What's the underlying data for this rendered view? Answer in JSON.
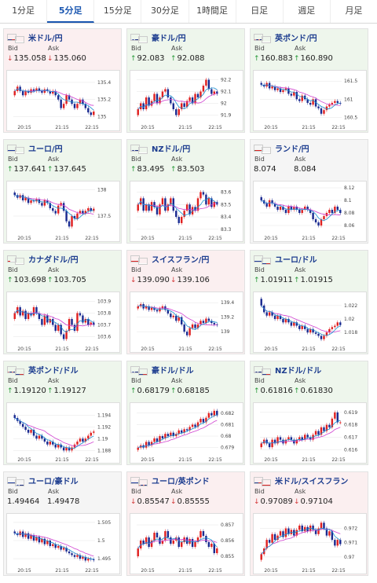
{
  "tabs": [
    {
      "label": "1分足",
      "active": false
    },
    {
      "label": "5分足",
      "active": true
    },
    {
      "label": "15分足",
      "active": false
    },
    {
      "label": "30分足",
      "active": false
    },
    {
      "label": "1時間足",
      "active": false
    },
    {
      "label": "日足",
      "active": false
    },
    {
      "label": "週足",
      "active": false
    },
    {
      "label": "月足",
      "active": false
    }
  ],
  "colors": {
    "accent": "#1a56b0",
    "up_card": "#eef6ec",
    "down_card": "#fbeff0",
    "up_arrow": "#2a9a3a",
    "down_arrow": "#d43a3a",
    "ma_line": "#d040d0",
    "candle_up": "#e02020",
    "candle_down": "#1a2a90"
  },
  "labels": {
    "bid": "Bid",
    "ask": "Ask"
  },
  "x_ticks": [
    "20:15",
    "21:15",
    "22:15"
  ],
  "pairs": [
    {
      "title": "米ドル/円",
      "flags": [
        "us-flag",
        "jp-flag"
      ],
      "trend": "down",
      "bid": "135.058",
      "ask": "135.060",
      "bid_dir": "down",
      "ask_dir": "down",
      "y_ticks": [
        "135.4",
        "135.2",
        "135"
      ],
      "ylim": [
        134.95,
        135.5
      ],
      "candles": [
        135.3,
        135.35,
        135.3,
        135.25,
        135.3,
        135.28,
        135.32,
        135.3,
        135.33,
        135.3,
        135.28,
        135.32,
        135.3,
        135.27,
        135.3,
        135.25,
        135.2,
        135.1,
        135.15,
        135.25,
        135.2,
        135.15,
        135.1,
        135.15,
        135.2,
        135.15,
        135.1,
        135.05,
        135.02,
        135.06
      ]
    },
    {
      "title": "豪ドル/円",
      "flags": [
        "au-flag",
        "jp-flag"
      ],
      "trend": "up",
      "bid": "92.083",
      "ask": "92.088",
      "bid_dir": "up",
      "ask_dir": "up",
      "y_ticks": [
        "92.2",
        "92.1",
        "92",
        "91.9"
      ],
      "ylim": [
        91.85,
        92.25
      ],
      "candles": [
        91.95,
        92.0,
        91.95,
        92.05,
        91.98,
        92.02,
        92.08,
        92.0,
        92.05,
        92.1,
        92.12,
        92.05,
        92.0,
        91.95,
        91.9,
        91.95,
        92.0,
        91.97,
        92.02,
        92.05,
        92.0,
        92.08,
        92.05,
        92.1,
        92.15,
        92.2,
        92.12,
        92.08,
        92.1,
        92.08
      ]
    },
    {
      "title": "英ポンド/円",
      "flags": [
        "gb-flag",
        "jp-flag"
      ],
      "trend": "up",
      "bid": "160.883",
      "ask": "160.890",
      "bid_dir": "up",
      "ask_dir": "up",
      "y_ticks": [
        "161.5",
        "161",
        "160.5"
      ],
      "ylim": [
        160.4,
        161.7
      ],
      "candles": [
        161.4,
        161.35,
        161.45,
        161.3,
        161.35,
        161.25,
        161.3,
        161.2,
        161.25,
        161.3,
        161.15,
        161.1,
        161.2,
        161.0,
        160.95,
        161.1,
        161.0,
        160.9,
        160.85,
        161.0,
        160.8,
        160.75,
        160.6,
        160.7,
        160.8,
        160.85,
        160.9,
        160.95,
        160.9,
        160.88
      ]
    },
    {
      "title": "ユーロ/円",
      "flags": [
        "eu-flag",
        "jp-flag"
      ],
      "trend": "up",
      "bid": "137.641",
      "ask": "137.645",
      "bid_dir": "up",
      "ask_dir": "up",
      "y_ticks": [
        "138",
        "137.5"
      ],
      "ylim": [
        137.2,
        138.1
      ],
      "candles": [
        137.9,
        137.85,
        137.9,
        137.8,
        137.85,
        137.75,
        137.8,
        137.78,
        137.82,
        137.75,
        137.7,
        137.8,
        137.75,
        137.65,
        137.6,
        137.55,
        137.7,
        137.75,
        137.6,
        137.4,
        137.3,
        137.5,
        137.45,
        137.55,
        137.6,
        137.55,
        137.6,
        137.65,
        137.6,
        137.64
      ]
    },
    {
      "title": "NZドル/円",
      "flags": [
        "nz-flag",
        "jp-flag"
      ],
      "trend": "up",
      "bid": "83.495",
      "ask": "83.503",
      "bid_dir": "up",
      "ask_dir": "up",
      "y_ticks": [
        "83.6",
        "83.5",
        "83.4",
        "83.3"
      ],
      "ylim": [
        83.28,
        83.66
      ],
      "candles": [
        83.5,
        83.55,
        83.45,
        83.5,
        83.45,
        83.52,
        83.48,
        83.42,
        83.5,
        83.55,
        83.45,
        83.5,
        83.55,
        83.45,
        83.4,
        83.35,
        83.4,
        83.45,
        83.5,
        83.42,
        83.48,
        83.45,
        83.55,
        83.6,
        83.58,
        83.5,
        83.55,
        83.48,
        83.52,
        83.5
      ]
    },
    {
      "title": "ランド/円",
      "flags": [
        "za-flag",
        "jp-flag"
      ],
      "trend": "neutral",
      "bid": "8.074",
      "ask": "8.084",
      "bid_dir": "",
      "ask_dir": "",
      "y_ticks": [
        "8.12",
        "8.1",
        "8.08",
        "8.06"
      ],
      "ylim": [
        8.05,
        8.125
      ],
      "candles": [
        8.1,
        8.095,
        8.09,
        8.1,
        8.095,
        8.09,
        8.085,
        8.09,
        8.085,
        8.08,
        8.09,
        8.085,
        8.09,
        8.085,
        8.08,
        8.085,
        8.09,
        8.085,
        8.08,
        8.07,
        8.065,
        8.06,
        8.07,
        8.075,
        8.08,
        8.085,
        8.08,
        8.09,
        8.085,
        8.08
      ]
    },
    {
      "title": "カナダドル/円",
      "flags": [
        "ca-flag",
        "jp-flag"
      ],
      "trend": "up",
      "bid": "103.698",
      "ask": "103.705",
      "bid_dir": "up",
      "ask_dir": "up",
      "y_ticks": [
        "103.9",
        "103.8",
        "103.7",
        "103.6"
      ],
      "ylim": [
        103.55,
        103.95
      ],
      "candles": [
        103.8,
        103.85,
        103.78,
        103.82,
        103.75,
        103.8,
        103.78,
        103.85,
        103.8,
        103.75,
        103.7,
        103.78,
        103.72,
        103.75,
        103.7,
        103.65,
        103.7,
        103.62,
        103.58,
        103.65,
        103.75,
        103.7,
        103.65,
        103.8,
        103.78,
        103.72,
        103.75,
        103.7,
        103.72,
        103.7
      ]
    },
    {
      "title": "スイスフラン/円",
      "flags": [
        "ch-flag",
        "jp-flag"
      ],
      "trend": "down",
      "bid": "139.090",
      "ask": "139.106",
      "bid_dir": "down",
      "ask_dir": "down",
      "y_ticks": [
        "139.4",
        "139.2",
        "139"
      ],
      "ylim": [
        138.85,
        139.5
      ],
      "candles": [
        139.35,
        139.38,
        139.32,
        139.35,
        139.3,
        139.33,
        139.3,
        139.28,
        139.32,
        139.35,
        139.3,
        139.25,
        139.2,
        139.22,
        139.15,
        139.2,
        139.1,
        139.0,
        138.95,
        139.05,
        139.1,
        139.05,
        139.1,
        139.15,
        139.12,
        139.18,
        139.15,
        139.12,
        139.1,
        139.09
      ]
    },
    {
      "title": "ユーロ/ドル",
      "flags": [
        "eu-flag",
        "us-flag"
      ],
      "trend": "up",
      "bid": "1.01911",
      "ask": "1.01915",
      "bid_dir": "up",
      "ask_dir": "up",
      "y_ticks": [
        "1.022",
        "1.02",
        "1.018"
      ],
      "ylim": [
        1.0165,
        1.0235
      ],
      "candles": [
        1.022,
        1.021,
        1.0205,
        1.021,
        1.0205,
        1.02,
        1.0205,
        1.02,
        1.0195,
        1.02,
        1.0195,
        1.019,
        1.0195,
        1.019,
        1.0185,
        1.019,
        1.0185,
        1.018,
        1.0185,
        1.018,
        1.0178,
        1.0175,
        1.017,
        1.0175,
        1.018,
        1.0185,
        1.0188,
        1.019,
        1.0195,
        1.0191
      ]
    },
    {
      "title": "英ポンド/ドル",
      "flags": [
        "gb-flag",
        "us-flag"
      ],
      "trend": "up",
      "bid": "1.19120",
      "ask": "1.19127",
      "bid_dir": "up",
      "ask_dir": "up",
      "y_ticks": [
        "1.194",
        "1.192",
        "1.19",
        "1.188"
      ],
      "ylim": [
        1.1875,
        1.1955
      ],
      "candles": [
        1.1935,
        1.193,
        1.1925,
        1.192,
        1.1915,
        1.191,
        1.1915,
        1.1905,
        1.19,
        1.1905,
        1.19,
        1.1895,
        1.189,
        1.1895,
        1.189,
        1.1885,
        1.189,
        1.1885,
        1.188,
        1.1885,
        1.188,
        1.1885,
        1.189,
        1.1895,
        1.19,
        1.1895,
        1.19,
        1.1905,
        1.191,
        1.1912
      ]
    },
    {
      "title": "豪ドル/ドル",
      "flags": [
        "au-flag",
        "us-flag"
      ],
      "trend": "up",
      "bid": "0.68179",
      "ask": "0.68185",
      "bid_dir": "up",
      "ask_dir": "up",
      "y_ticks": [
        "0.682",
        "0.681",
        "0.68",
        "0.679"
      ],
      "ylim": [
        0.6785,
        0.6826
      ],
      "candles": [
        0.679,
        0.6792,
        0.679,
        0.6795,
        0.6792,
        0.6795,
        0.6798,
        0.6795,
        0.68,
        0.6798,
        0.6802,
        0.68,
        0.6803,
        0.68,
        0.6802,
        0.6805,
        0.6803,
        0.6806,
        0.6805,
        0.6808,
        0.681,
        0.6808,
        0.6812,
        0.6815,
        0.6812,
        0.6816,
        0.682,
        0.6818,
        0.6822,
        0.6818
      ]
    },
    {
      "title": "NZドル/ドル",
      "flags": [
        "nz-flag",
        "us-flag"
      ],
      "trend": "up",
      "bid": "0.61816",
      "ask": "0.61830",
      "bid_dir": "up",
      "ask_dir": "up",
      "y_ticks": [
        "0.619",
        "0.618",
        "0.617",
        "0.616"
      ],
      "ylim": [
        0.6157,
        0.6195
      ],
      "candles": [
        0.6165,
        0.6168,
        0.6165,
        0.6162,
        0.6168,
        0.6165,
        0.617,
        0.6168,
        0.6165,
        0.6168,
        0.617,
        0.6168,
        0.6165,
        0.6168,
        0.617,
        0.6168,
        0.6172,
        0.617,
        0.6168,
        0.6172,
        0.6175,
        0.6172,
        0.6178,
        0.6175,
        0.618,
        0.6178,
        0.6185,
        0.619,
        0.6182,
        0.6182
      ]
    },
    {
      "title": "ユーロ/豪ドル",
      "flags": [
        "eu-flag",
        "au-flag"
      ],
      "trend": "neutral",
      "bid": "1.49464",
      "ask": "1.49478",
      "bid_dir": "",
      "ask_dir": "",
      "y_ticks": [
        "1.505",
        "1.5",
        "1.495"
      ],
      "ylim": [
        1.4935,
        1.5065
      ],
      "candles": [
        1.502,
        1.5015,
        1.5025,
        1.501,
        1.502,
        1.5005,
        1.5015,
        1.5,
        1.501,
        1.4995,
        1.5005,
        1.499,
        1.5,
        1.4985,
        1.499,
        1.498,
        1.4985,
        1.4975,
        1.498,
        1.497,
        1.4965,
        1.496,
        1.4955,
        1.496,
        1.495,
        1.4955,
        1.4945,
        1.495,
        1.4948,
        1.4946
      ]
    },
    {
      "title": "ユーロ/英ポンド",
      "flags": [
        "eu-flag",
        "gb-flag"
      ],
      "trend": "down",
      "bid": "0.85547",
      "ask": "0.85555",
      "bid_dir": "down",
      "ask_dir": "down",
      "y_ticks": [
        "0.857",
        "0.856",
        "0.855"
      ],
      "ylim": [
        0.8545,
        0.8575
      ],
      "candles": [
        0.8555,
        0.856,
        0.8558,
        0.8562,
        0.8556,
        0.856,
        0.8565,
        0.8562,
        0.8558,
        0.856,
        0.8566,
        0.8562,
        0.8558,
        0.856,
        0.8562,
        0.8556,
        0.8559,
        0.8562,
        0.8558,
        0.8561,
        0.8556,
        0.8559,
        0.8562,
        0.8566,
        0.8563,
        0.8559,
        0.8556,
        0.8558,
        0.8552,
        0.8555
      ]
    },
    {
      "title": "米ドル/スイスフラン",
      "flags": [
        "us-flag",
        "ch-flag"
      ],
      "trend": "down",
      "bid": "0.97089",
      "ask": "0.97104",
      "bid_dir": "down",
      "ask_dir": "down",
      "y_ticks": [
        "0.972",
        "0.971",
        "0.97"
      ],
      "ylim": [
        0.9695,
        0.9728
      ],
      "candles": [
        0.9702,
        0.9706,
        0.9712,
        0.971,
        0.9716,
        0.9712,
        0.9715,
        0.9718,
        0.9714,
        0.972,
        0.9716,
        0.9719,
        0.9715,
        0.9719,
        0.9722,
        0.9718,
        0.9721,
        0.9718,
        0.9722,
        0.9719,
        0.9716,
        0.972,
        0.9724,
        0.972,
        0.9715,
        0.9718,
        0.9712,
        0.9708,
        0.9712,
        0.9709
      ]
    }
  ]
}
